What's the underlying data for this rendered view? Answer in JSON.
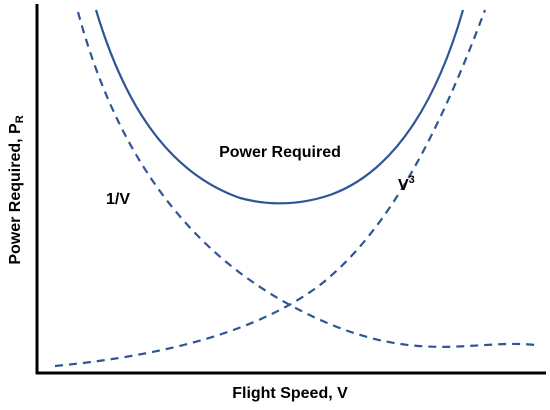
{
  "axes": {
    "x_label": "Flight Speed, V",
    "y_label": "Power Required, P",
    "y_label_subscript": "R"
  },
  "curves": [
    {
      "label": "Power Required"
    },
    {
      "label": "1/V"
    },
    {
      "label": "V",
      "superscript": "3"
    }
  ]
}
